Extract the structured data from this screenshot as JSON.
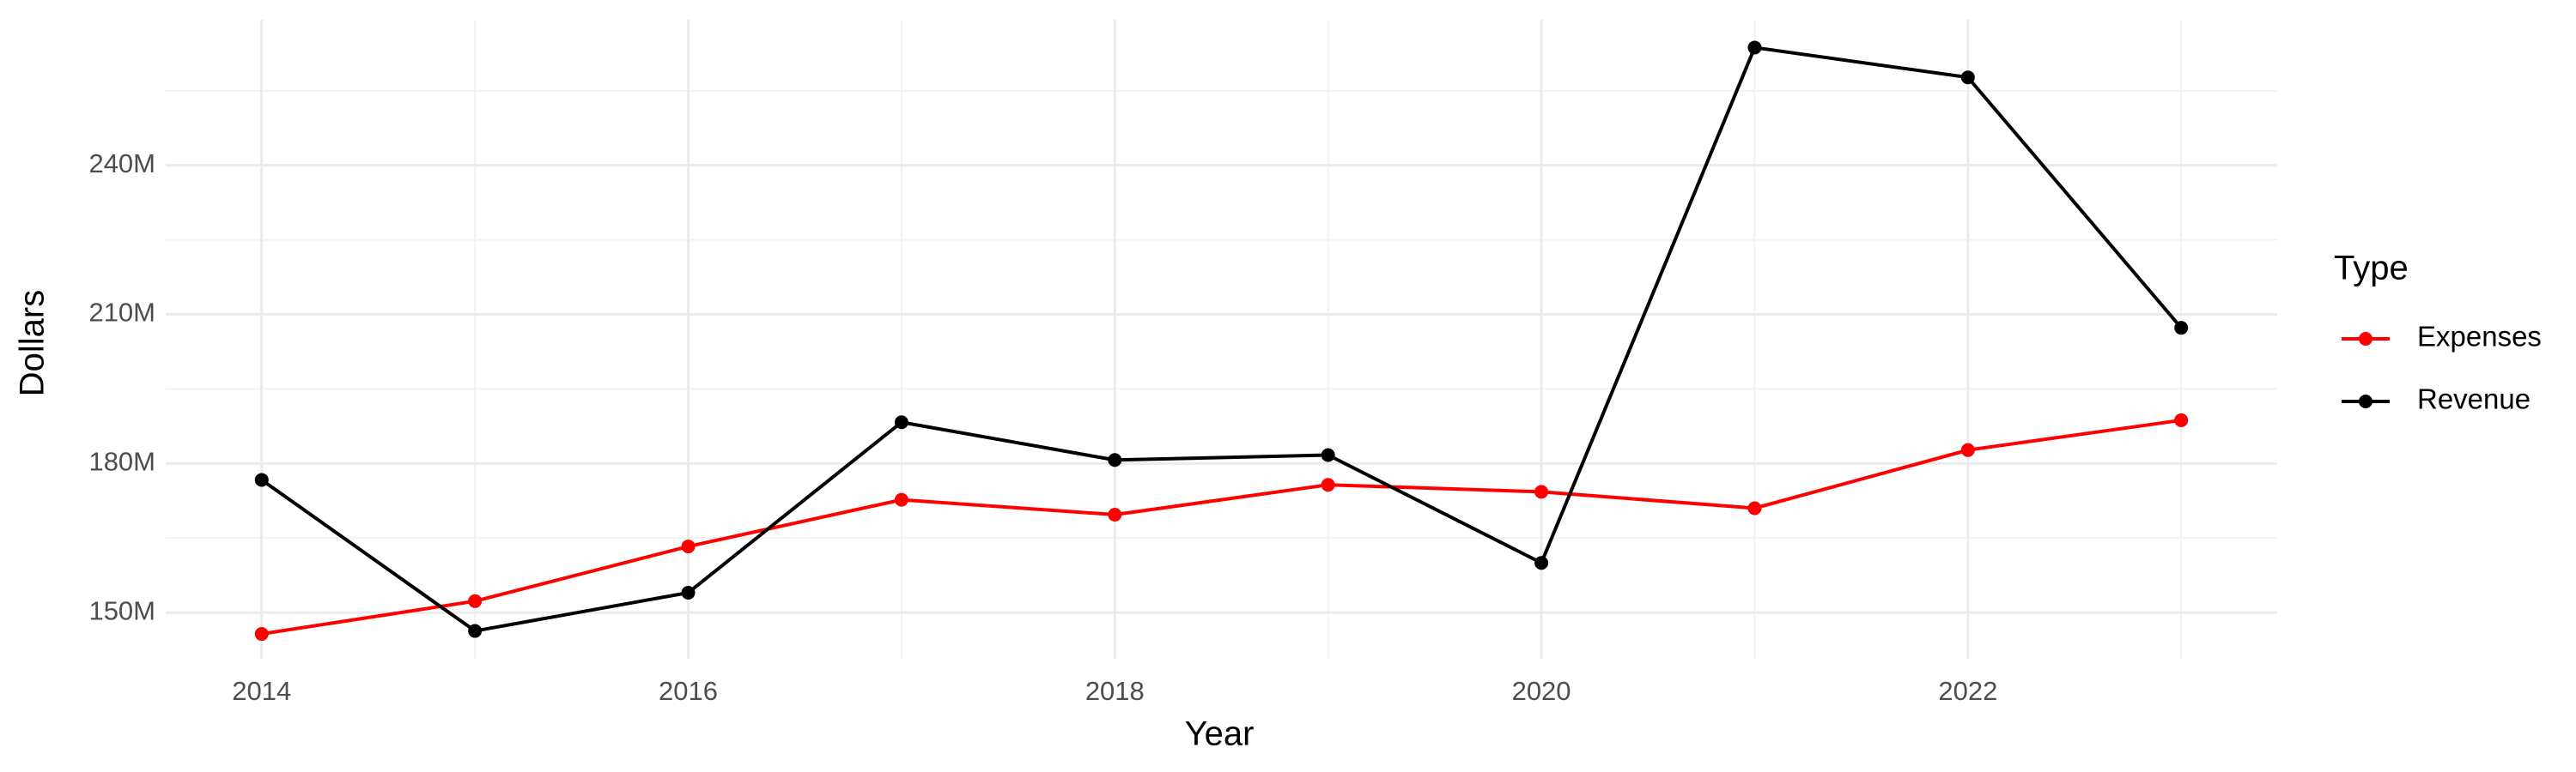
{
  "chart_data": {
    "type": "line",
    "x_label": "Year",
    "y_label": "Dollars",
    "legend_title": "Type",
    "x": [
      2014,
      2015,
      2016,
      2017,
      2018,
      2019,
      2020,
      2021,
      2022,
      2023
    ],
    "series": [
      {
        "name": "Expenses",
        "color": "#ff0000",
        "values": [
          145700000,
          152300000,
          163300000,
          172700000,
          169700000,
          175700000,
          174300000,
          171000000,
          182700000,
          188700000
        ]
      },
      {
        "name": "Revenue",
        "color": "#000000",
        "values": [
          176700000,
          146300000,
          154000000,
          188300000,
          180700000,
          181700000,
          160000000,
          263700000,
          257700000,
          207300000
        ]
      }
    ],
    "xlim": [
      2013.55,
      2023.45
    ],
    "xticks": [
      2014,
      2016,
      2018,
      2020,
      2022
    ],
    "ylim": [
      140700000,
      269300000
    ],
    "yticks": [
      {
        "value": 150000000,
        "label": "150M"
      },
      {
        "value": 180000000,
        "label": "180M"
      },
      {
        "value": 210000000,
        "label": "210M"
      },
      {
        "value": 240000000,
        "label": "240M"
      }
    ],
    "grid": true,
    "legend": "right"
  }
}
